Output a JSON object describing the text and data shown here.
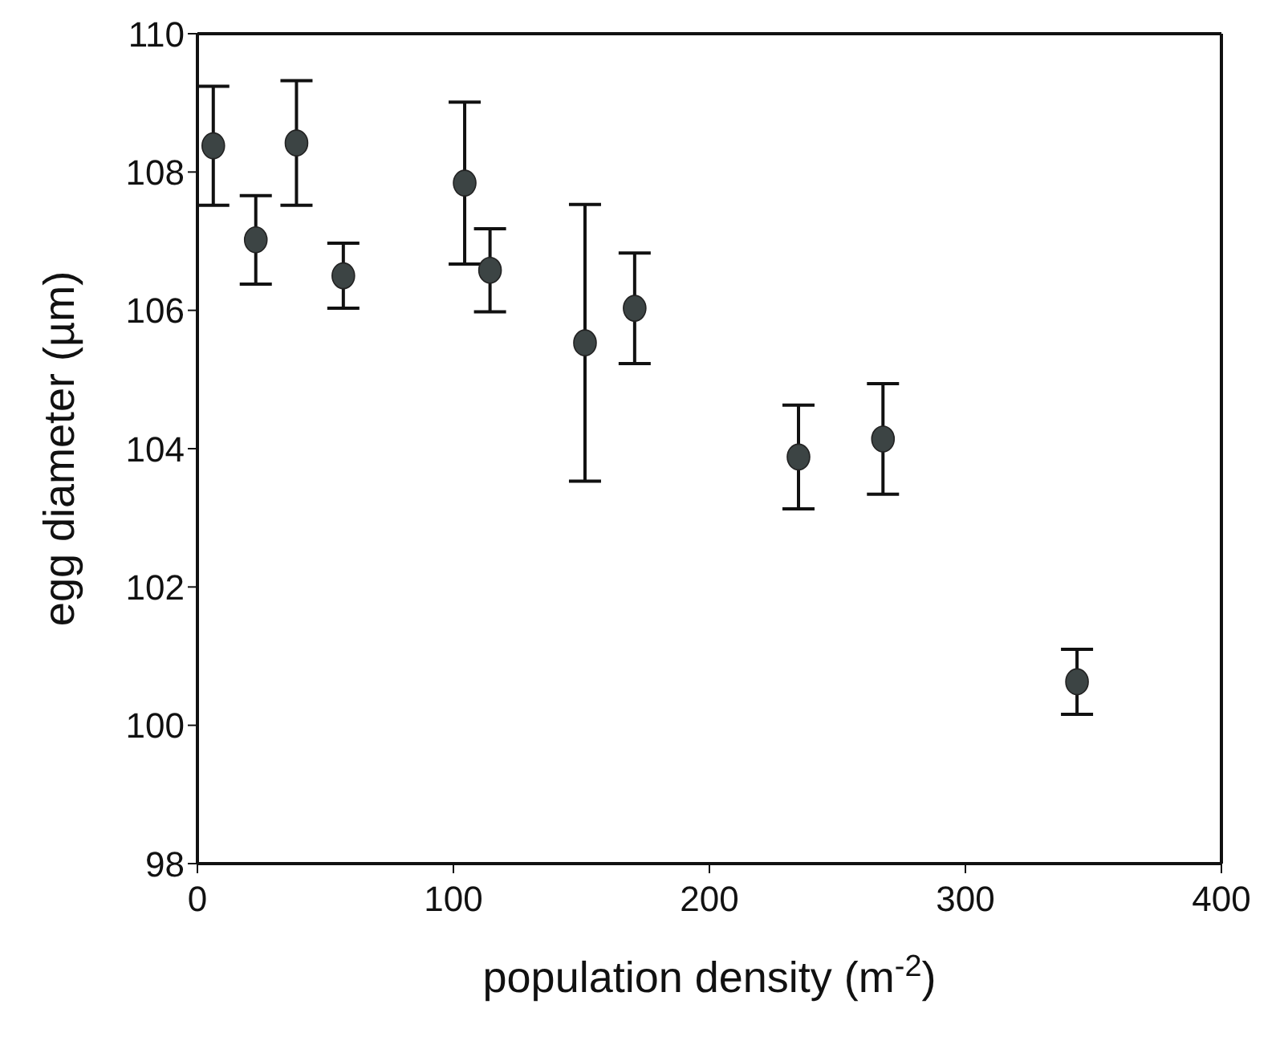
{
  "chart_data": {
    "type": "scatter",
    "xlabel": "population density (m$^{-2}$)",
    "ylabel": "egg diameter (µm)",
    "x": [
      6.2,
      22.8,
      38.7,
      57,
      104.4,
      114.3,
      151.4,
      170.8,
      234.8,
      267.8,
      343.6
    ],
    "values": [
      108.38,
      107.02,
      108.42,
      106.5,
      107.84,
      106.58,
      105.53,
      106.03,
      103.88,
      104.14,
      100.63
    ],
    "errors": [
      0.86,
      0.64,
      0.9,
      0.47,
      1.17,
      0.6,
      2.0,
      0.8,
      0.75,
      0.8,
      0.47
    ],
    "color": "#3c4444",
    "marker": "circle",
    "xlim": [
      0,
      400
    ],
    "xticks": [
      0,
      100,
      200,
      300,
      400
    ],
    "ylim": [
      98,
      110
    ],
    "yticks": [
      98,
      100,
      102,
      104,
      106,
      108,
      110
    ],
    "legend": false
  }
}
